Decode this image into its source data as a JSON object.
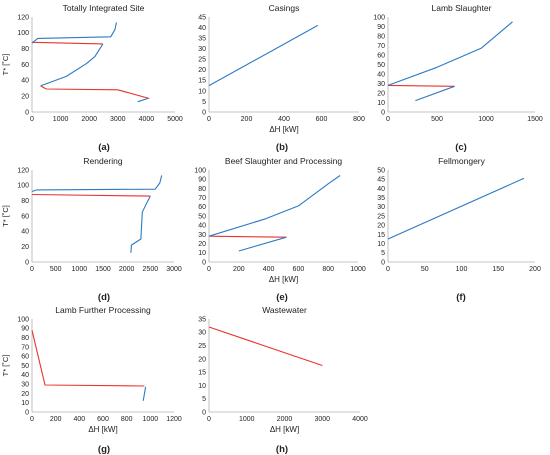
{
  "colors": {
    "hot": "#e8342c",
    "cold": "#2b7bc4",
    "axis": "#b0b0b0",
    "text": "#222222"
  },
  "chart_data": [
    {
      "type": "line",
      "panel_label": "(a)",
      "title": "Totally Integrated Site",
      "xlabel": "",
      "ylabel": "T* [˚C]",
      "xlim": [
        0,
        5000
      ],
      "ylim": [
        0,
        120
      ],
      "xticks": [
        0,
        1000,
        2000,
        3000,
        4000,
        5000
      ],
      "yticks": [
        0,
        20,
        40,
        60,
        80,
        100,
        120
      ],
      "series": [
        {
          "stream": "hot",
          "points": [
            [
              2480,
              86
            ],
            [
              0,
              88
            ]
          ]
        },
        {
          "stream": "hot",
          "points": [
            [
              4100,
              17
            ],
            [
              3000,
              28
            ],
            [
              500,
              29
            ],
            [
              300,
              33
            ]
          ]
        },
        {
          "stream": "cold",
          "points": [
            [
              300,
              33
            ],
            [
              1200,
              45
            ],
            [
              1900,
              61
            ],
            [
              2200,
              70
            ],
            [
              2480,
              86
            ]
          ]
        },
        {
          "stream": "cold",
          "points": [
            [
              3700,
              13
            ],
            [
              4050,
              17
            ]
          ]
        },
        {
          "stream": "cold",
          "points": [
            [
              0,
              87
            ],
            [
              200,
              93
            ],
            [
              2750,
              95
            ],
            [
              2900,
              104
            ],
            [
              2950,
              113
            ]
          ]
        }
      ]
    },
    {
      "type": "line",
      "panel_label": "(b)",
      "title": "Casings",
      "xlabel": "ΔH [kW]",
      "ylabel": "",
      "xlim": [
        0,
        800
      ],
      "ylim": [
        0,
        45
      ],
      "xticks": [
        0,
        200,
        400,
        600,
        800
      ],
      "yticks": [
        0,
        5,
        10,
        15,
        20,
        25,
        30,
        35,
        40,
        45
      ],
      "series": [
        {
          "stream": "cold",
          "points": [
            [
              0,
              12.5
            ],
            [
              580,
              41
            ]
          ]
        }
      ]
    },
    {
      "type": "line",
      "panel_label": "(c)",
      "title": "Lamb Slaughter",
      "xlabel": "",
      "ylabel": "",
      "xlim": [
        0,
        1500
      ],
      "ylim": [
        0,
        100
      ],
      "xticks": [
        0,
        500,
        1000,
        1500
      ],
      "yticks": [
        0,
        10,
        20,
        30,
        40,
        50,
        60,
        70,
        80,
        90,
        100
      ],
      "series": [
        {
          "stream": "hot",
          "points": [
            [
              680,
              27
            ],
            [
              0,
              28
            ]
          ]
        },
        {
          "stream": "cold",
          "points": [
            [
              280,
              12
            ],
            [
              680,
              27
            ]
          ]
        },
        {
          "stream": "cold",
          "points": [
            [
              0,
              28
            ],
            [
              500,
              47
            ],
            [
              950,
              67
            ],
            [
              1270,
              95
            ]
          ]
        }
      ]
    },
    {
      "type": "line",
      "panel_label": "(d)",
      "title": "Rendering",
      "xlabel": "",
      "ylabel": "T* [˚C]",
      "xlim": [
        0,
        3000
      ],
      "ylim": [
        0,
        120
      ],
      "xticks": [
        0,
        500,
        1000,
        1500,
        2000,
        2500,
        3000
      ],
      "yticks": [
        0,
        20,
        40,
        60,
        80,
        100,
        120
      ],
      "series": [
        {
          "stream": "hot",
          "points": [
            [
              0,
              88
            ],
            [
              2500,
              86
            ]
          ]
        },
        {
          "stream": "cold",
          "points": [
            [
              2090,
              12
            ],
            [
              2100,
              22
            ],
            [
              2300,
              30
            ],
            [
              2330,
              65
            ],
            [
              2400,
              74
            ],
            [
              2500,
              86
            ]
          ]
        },
        {
          "stream": "cold",
          "points": [
            [
              0,
              92
            ],
            [
              100,
              94
            ],
            [
              2600,
              95
            ],
            [
              2700,
              103
            ],
            [
              2740,
              113
            ]
          ]
        }
      ]
    },
    {
      "type": "line",
      "panel_label": "(e)",
      "title": "Beef Slaughter and Processing",
      "xlabel": "ΔH [kW]",
      "ylabel": "",
      "xlim": [
        0,
        1000
      ],
      "ylim": [
        0,
        100
      ],
      "xticks": [
        0,
        200,
        400,
        600,
        800,
        1000
      ],
      "yticks": [
        0,
        10,
        20,
        30,
        40,
        50,
        60,
        70,
        80,
        90,
        100
      ],
      "series": [
        {
          "stream": "hot",
          "points": [
            [
              0,
              28
            ],
            [
              520,
              27
            ]
          ]
        },
        {
          "stream": "cold",
          "points": [
            [
              200,
              12
            ],
            [
              520,
              27
            ]
          ]
        },
        {
          "stream": "cold",
          "points": [
            [
              0,
              28
            ],
            [
              380,
              47
            ],
            [
              600,
              61
            ],
            [
              800,
              85
            ],
            [
              880,
              94
            ]
          ]
        }
      ]
    },
    {
      "type": "line",
      "panel_label": "(f)",
      "title": "Fellmongery",
      "xlabel": "",
      "ylabel": "",
      "xlim": [
        0,
        200
      ],
      "ylim": [
        0,
        50
      ],
      "xticks": [
        0,
        50,
        100,
        150,
        200
      ],
      "yticks": [
        0,
        5,
        10,
        15,
        20,
        25,
        30,
        35,
        40,
        45,
        50
      ],
      "series": [
        {
          "stream": "cold",
          "points": [
            [
              0,
              12.5
            ],
            [
              185,
              45.5
            ]
          ]
        }
      ]
    },
    {
      "type": "line",
      "panel_label": "(g)",
      "title": "Lamb Further Processing",
      "xlabel": "ΔH [kW]",
      "ylabel": "T* [˚C]",
      "xlim": [
        0,
        1200
      ],
      "ylim": [
        0,
        100
      ],
      "xticks": [
        0,
        200,
        400,
        600,
        800,
        1000,
        1200
      ],
      "yticks": [
        0,
        10,
        20,
        30,
        40,
        50,
        60,
        70,
        80,
        90,
        100
      ],
      "series": [
        {
          "stream": "hot",
          "points": [
            [
              0,
              88
            ],
            [
              110,
              29
            ],
            [
              950,
              28
            ]
          ]
        },
        {
          "stream": "cold",
          "points": [
            [
              940,
              12
            ],
            [
              960,
              27
            ]
          ]
        }
      ]
    },
    {
      "type": "line",
      "panel_label": "(h)",
      "title": "Wastewater",
      "xlabel": "ΔH [kW]",
      "ylabel": "",
      "xlim": [
        0,
        4000
      ],
      "ylim": [
        0,
        35
      ],
      "xticks": [
        0,
        1000,
        2000,
        3000,
        4000
      ],
      "yticks": [
        0,
        5,
        10,
        15,
        20,
        25,
        30,
        35
      ],
      "series": [
        {
          "stream": "hot",
          "points": [
            [
              0,
              32
            ],
            [
              3000,
              17.5
            ]
          ]
        }
      ]
    }
  ]
}
